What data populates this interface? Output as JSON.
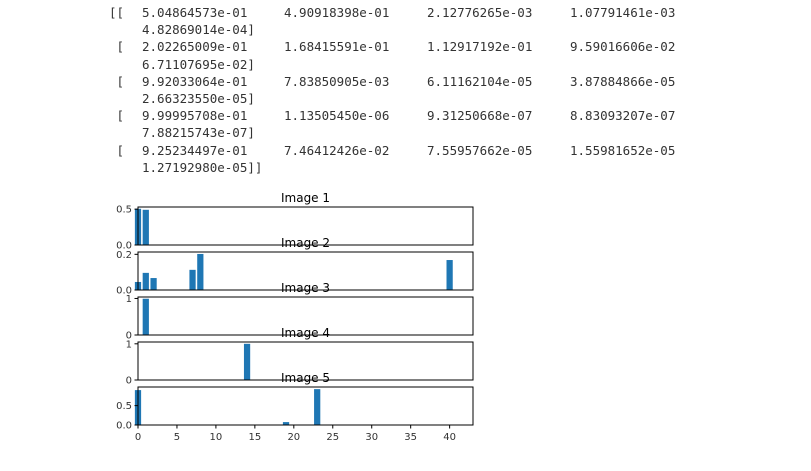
{
  "array_output": [
    {
      "prefix": "[[",
      "values": [
        "5.04864573e-01",
        "4.90918398e-01",
        "2.12776265e-03",
        "1.07791461e-03"
      ],
      "wrap": "4.82869014e-04]"
    },
    {
      "prefix": " [",
      "values": [
        "2.02265009e-01",
        "1.68415591e-01",
        "1.12917192e-01",
        "9.59016606e-02"
      ],
      "wrap": "6.71107695e-02]"
    },
    {
      "prefix": " [",
      "values": [
        "9.92033064e-01",
        "7.83850905e-03",
        "6.11162104e-05",
        "3.87884866e-05"
      ],
      "wrap": "2.66323550e-05]"
    },
    {
      "prefix": " [",
      "values": [
        "9.99995708e-01",
        "1.13505450e-06",
        "9.31250668e-07",
        "8.83093207e-07"
      ],
      "wrap": "7.88215743e-07]"
    },
    {
      "prefix": " [",
      "values": [
        "9.25234497e-01",
        "7.46412426e-02",
        "7.55957662e-05",
        "1.55981652e-05"
      ],
      "wrap": "1.27192980e-05]]"
    }
  ],
  "colors": {
    "bar": "#1f77b4",
    "axis": "#000000",
    "text": "#333333"
  },
  "chart_data": [
    {
      "type": "bar",
      "title": "Image 1",
      "xlabel": "",
      "ylabel": "",
      "xlim": [
        0,
        43
      ],
      "ylim": [
        0,
        0.53
      ],
      "yticks": [
        "0.0",
        "0.5"
      ],
      "ytick_values": [
        0,
        0.5
      ],
      "xticks": [],
      "points": [
        {
          "x": 0,
          "y": 0.505
        },
        {
          "x": 1,
          "y": 0.491
        }
      ]
    },
    {
      "type": "bar",
      "title": "Image 2",
      "xlabel": "",
      "ylabel": "",
      "xlim": [
        0,
        43
      ],
      "ylim": [
        0,
        0.213
      ],
      "yticks": [
        "0.0",
        "0.2"
      ],
      "ytick_values": [
        0,
        0.2
      ],
      "xticks": [],
      "points": [
        {
          "x": 0,
          "y": 0.045
        },
        {
          "x": 1,
          "y": 0.096
        },
        {
          "x": 2,
          "y": 0.067
        },
        {
          "x": 7,
          "y": 0.113
        },
        {
          "x": 8,
          "y": 0.202
        },
        {
          "x": 40,
          "y": 0.168
        }
      ]
    },
    {
      "type": "bar",
      "title": "Image 3",
      "xlabel": "",
      "ylabel": "",
      "xlim": [
        0,
        43
      ],
      "ylim": [
        0,
        1.04
      ],
      "yticks": [
        "0",
        "1"
      ],
      "ytick_values": [
        0,
        1
      ],
      "xticks": [],
      "points": [
        {
          "x": 1,
          "y": 0.992
        }
      ]
    },
    {
      "type": "bar",
      "title": "Image 4",
      "xlabel": "",
      "ylabel": "",
      "xlim": [
        0,
        43
      ],
      "ylim": [
        0,
        1.05
      ],
      "yticks": [
        "0",
        "1"
      ],
      "ytick_values": [
        0,
        1
      ],
      "xticks": [],
      "points": [
        {
          "x": 14,
          "y": 1.0
        }
      ]
    },
    {
      "type": "bar",
      "title": "Image 5",
      "xlabel": "",
      "ylabel": "",
      "xlim": [
        0,
        43
      ],
      "ylim": [
        0,
        0.98
      ],
      "yticks": [
        "0.0",
        "0.5"
      ],
      "ytick_values": [
        0,
        0.5
      ],
      "xticks": [
        "0",
        "5",
        "10",
        "15",
        "20",
        "25",
        "30",
        "35",
        "40"
      ],
      "xtick_values": [
        0,
        5,
        10,
        15,
        20,
        25,
        30,
        35,
        40
      ],
      "points": [
        {
          "x": 0,
          "y": 0.9
        },
        {
          "x": 19,
          "y": 0.075
        },
        {
          "x": 23,
          "y": 0.925
        }
      ]
    }
  ]
}
